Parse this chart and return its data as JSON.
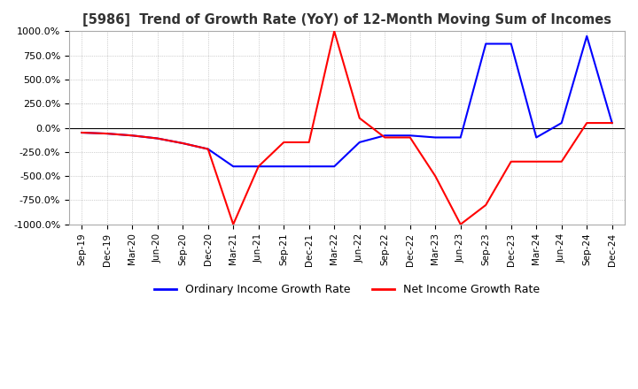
{
  "title": "[5986]  Trend of Growth Rate (YoY) of 12-Month Moving Sum of Incomes",
  "ylim": [
    -1000,
    1000
  ],
  "yticks": [
    1000.0,
    750.0,
    500.0,
    250.0,
    0.0,
    -250.0,
    -500.0,
    -750.0,
    -1000.0
  ],
  "ordinary_color": "#0000FF",
  "net_color": "#FF0000",
  "background_color": "#FFFFFF",
  "grid_color": "#AAAAAA",
  "legend_labels": [
    "Ordinary Income Growth Rate",
    "Net Income Growth Rate"
  ],
  "x_labels": [
    "Sep-19",
    "Dec-19",
    "Mar-20",
    "Jun-20",
    "Sep-20",
    "Dec-20",
    "Mar-21",
    "Jun-21",
    "Sep-21",
    "Dec-21",
    "Mar-22",
    "Jun-22",
    "Sep-22",
    "Dec-22",
    "Mar-23",
    "Jun-23",
    "Sep-23",
    "Dec-23",
    "Mar-24",
    "Jun-24",
    "Sep-24",
    "Dec-24"
  ],
  "ordinary_income": [
    -50,
    -60,
    -80,
    -110,
    -160,
    -220,
    -400,
    -400,
    -400,
    -400,
    -400,
    -150,
    -80,
    -80,
    -100,
    -100,
    870,
    870,
    -100,
    50,
    950,
    50
  ],
  "net_income": [
    -50,
    -60,
    -80,
    -110,
    -160,
    -220,
    -1000,
    -400,
    -150,
    -150,
    1000,
    100,
    -100,
    -100,
    -500,
    -1000,
    -800,
    -350,
    -350,
    -350,
    50,
    50
  ]
}
